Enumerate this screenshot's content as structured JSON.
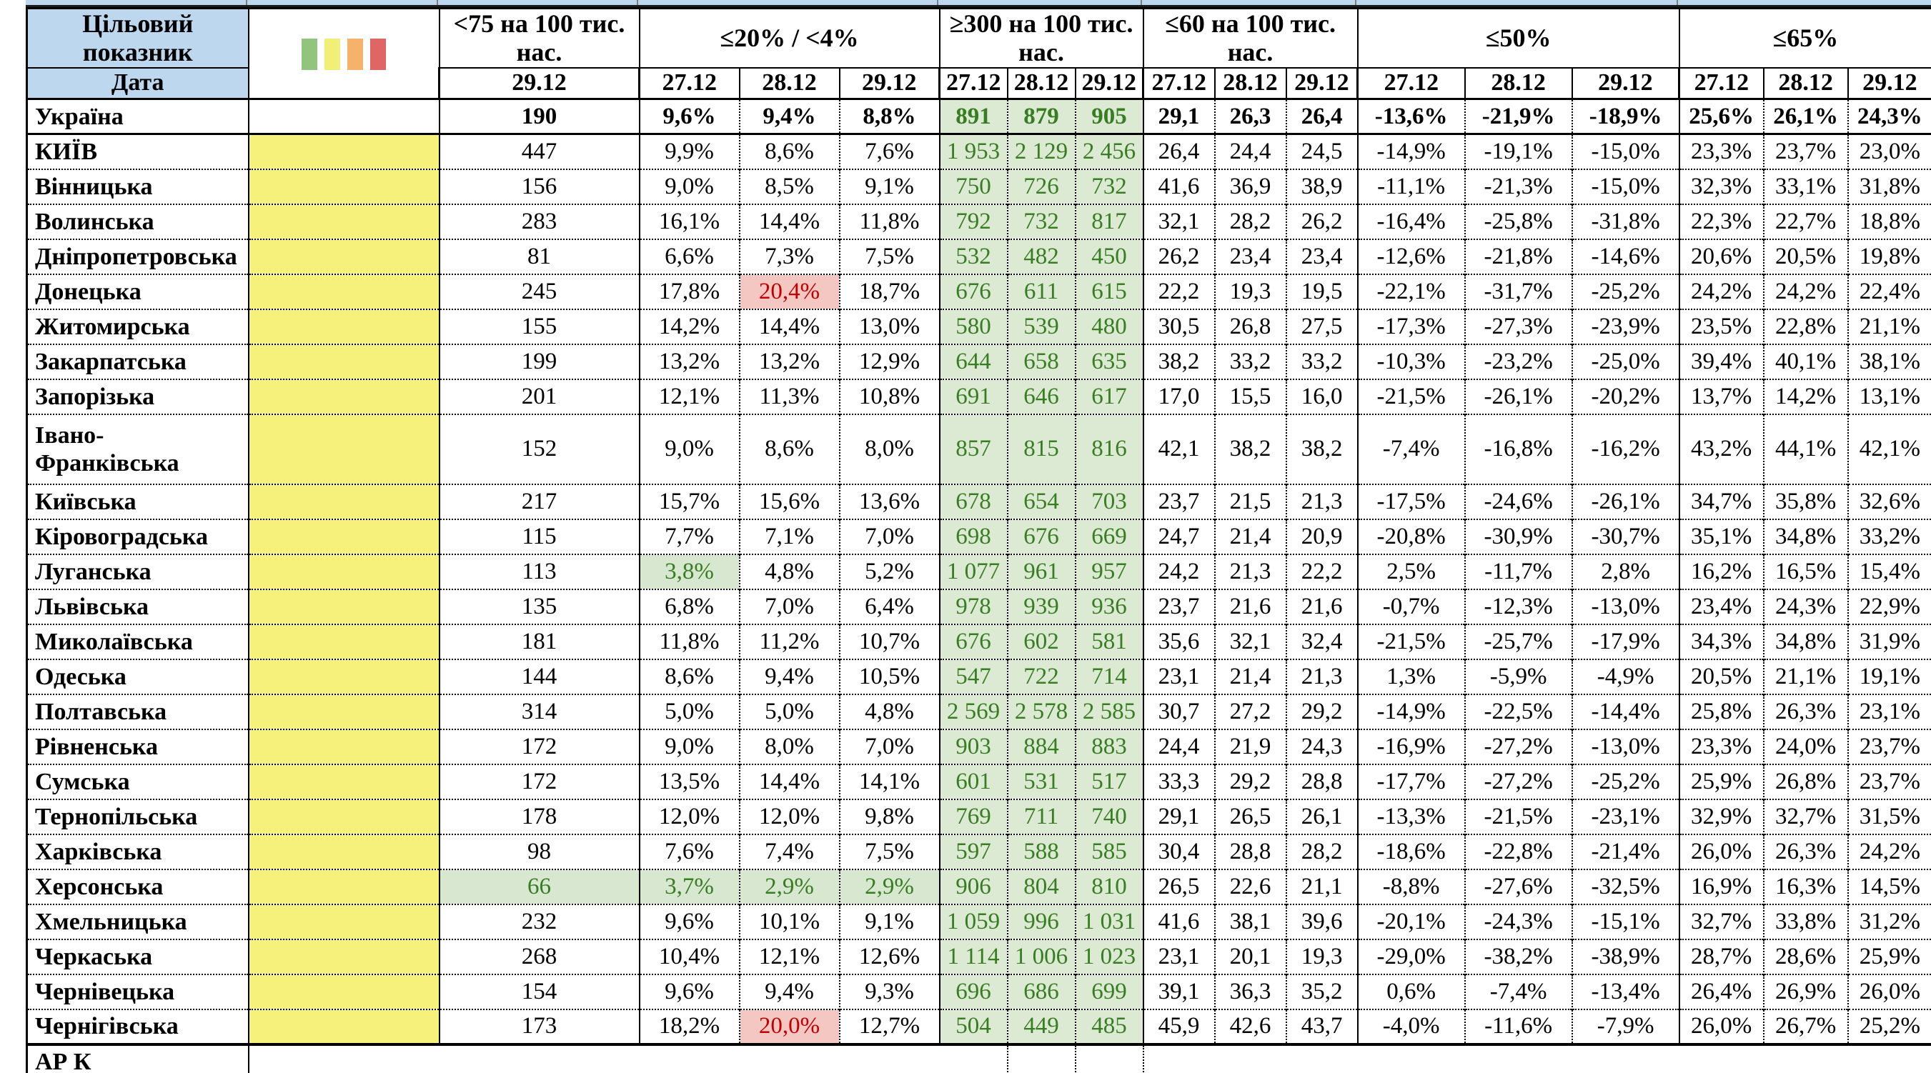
{
  "header": {
    "target_label": "Цільовий показник",
    "date_label": "Дата",
    "legend_colors": [
      "#93c47d",
      "#f2ef79",
      "#f6b26b",
      "#e06666"
    ],
    "legend_names": [
      "green-level",
      "yellow-level",
      "orange-level",
      "red-level"
    ],
    "sections": [
      {
        "title": "<75 на 100 тис. нас.",
        "dates": [
          "29.12"
        ]
      },
      {
        "title": "≤20% / <4%",
        "dates": [
          "27.12",
          "28.12",
          "29.12"
        ]
      },
      {
        "title": "≥300 на 100 тис. нас.",
        "dates": [
          "27.12",
          "28.12",
          "29.12"
        ]
      },
      {
        "title": "≤60 на 100 тис. нас.",
        "dates": [
          "27.12",
          "28.12",
          "29.12"
        ]
      },
      {
        "title": "≤50%",
        "dates": [
          "27.12",
          "28.12",
          "29.12"
        ]
      },
      {
        "title": "≤65%",
        "dates": [
          "27.12",
          "28.12",
          "29.12"
        ]
      }
    ],
    "colors": {
      "header_blue": "#bdd7ee",
      "indicator_yellow": "#f5f17b",
      "good_bg": "#dcead3",
      "good_text": "#377d22",
      "bad_bg": "#f5c7c3",
      "bad_text": "#c00000"
    }
  },
  "rows": [
    {
      "name": "Україна",
      "bold": true,
      "yellow": false,
      "values": [
        "190",
        "9,6%",
        "9,4%",
        "8,8%",
        "891",
        "879",
        "905",
        "29,1",
        "26,3",
        "26,4",
        "-13,6%",
        "-21,9%",
        "-18,9%",
        "25,6%",
        "26,1%",
        "24,3%"
      ],
      "hl": {}
    },
    {
      "name": "КИЇВ",
      "yellow": true,
      "values": [
        "447",
        "9,9%",
        "8,6%",
        "7,6%",
        "1 953",
        "2 129",
        "2 456",
        "26,4",
        "24,4",
        "24,5",
        "-14,9%",
        "-19,1%",
        "-15,0%",
        "23,3%",
        "23,7%",
        "23,0%"
      ],
      "hl": {}
    },
    {
      "name": "Вінницька",
      "yellow": true,
      "values": [
        "156",
        "9,0%",
        "8,5%",
        "9,1%",
        "750",
        "726",
        "732",
        "41,6",
        "36,9",
        "38,9",
        "-11,1%",
        "-21,3%",
        "-15,0%",
        "32,3%",
        "33,1%",
        "31,8%"
      ],
      "hl": {}
    },
    {
      "name": "Волинська",
      "yellow": true,
      "values": [
        "283",
        "16,1%",
        "14,4%",
        "11,8%",
        "792",
        "732",
        "817",
        "32,1",
        "28,2",
        "26,2",
        "-16,4%",
        "-25,8%",
        "-31,8%",
        "22,3%",
        "22,7%",
        "18,8%"
      ],
      "hl": {}
    },
    {
      "name": "Дніпропетровська",
      "yellow": true,
      "values": [
        "81",
        "6,6%",
        "7,3%",
        "7,5%",
        "532",
        "482",
        "450",
        "26,2",
        "23,4",
        "23,4",
        "-12,6%",
        "-21,8%",
        "-14,6%",
        "20,6%",
        "20,5%",
        "19,8%"
      ],
      "hl": {}
    },
    {
      "name": "Донецька",
      "yellow": true,
      "values": [
        "245",
        "17,8%",
        "20,4%",
        "18,7%",
        "676",
        "611",
        "615",
        "22,2",
        "19,3",
        "19,5",
        "-22,1%",
        "-31,7%",
        "-25,2%",
        "24,2%",
        "24,2%",
        "22,4%"
      ],
      "hl": {
        "2": "bad"
      }
    },
    {
      "name": "Житомирська",
      "yellow": true,
      "values": [
        "155",
        "14,2%",
        "14,4%",
        "13,0%",
        "580",
        "539",
        "480",
        "30,5",
        "26,8",
        "27,5",
        "-17,3%",
        "-27,3%",
        "-23,9%",
        "23,5%",
        "22,8%",
        "21,1%"
      ],
      "hl": {}
    },
    {
      "name": "Закарпатська",
      "yellow": true,
      "values": [
        "199",
        "13,2%",
        "13,2%",
        "12,9%",
        "644",
        "658",
        "635",
        "38,2",
        "33,2",
        "33,2",
        "-10,3%",
        "-23,2%",
        "-25,0%",
        "39,4%",
        "40,1%",
        "38,1%"
      ],
      "hl": {}
    },
    {
      "name": "Запорізька",
      "yellow": true,
      "values": [
        "201",
        "12,1%",
        "11,3%",
        "10,8%",
        "691",
        "646",
        "617",
        "17,0",
        "15,5",
        "16,0",
        "-21,5%",
        "-26,1%",
        "-20,2%",
        "13,7%",
        "14,2%",
        "13,1%"
      ],
      "hl": {}
    },
    {
      "name": "Івано-Франківська",
      "yellow": true,
      "tall": true,
      "values": [
        "152",
        "9,0%",
        "8,6%",
        "8,0%",
        "857",
        "815",
        "816",
        "42,1",
        "38,2",
        "38,2",
        "-7,4%",
        "-16,8%",
        "-16,2%",
        "43,2%",
        "44,1%",
        "42,1%"
      ],
      "hl": {}
    },
    {
      "name": "Київська",
      "yellow": true,
      "values": [
        "217",
        "15,7%",
        "15,6%",
        "13,6%",
        "678",
        "654",
        "703",
        "23,7",
        "21,5",
        "21,3",
        "-17,5%",
        "-24,6%",
        "-26,1%",
        "34,7%",
        "35,8%",
        "32,6%"
      ],
      "hl": {}
    },
    {
      "name": "Кіровоградська",
      "yellow": true,
      "values": [
        "115",
        "7,7%",
        "7,1%",
        "7,0%",
        "698",
        "676",
        "669",
        "24,7",
        "21,4",
        "20,9",
        "-20,8%",
        "-30,9%",
        "-30,7%",
        "35,1%",
        "34,8%",
        "33,2%"
      ],
      "hl": {}
    },
    {
      "name": "Луганська",
      "yellow": true,
      "values": [
        "113",
        "3,8%",
        "4,8%",
        "5,2%",
        "1 077",
        "961",
        "957",
        "24,2",
        "21,3",
        "22,2",
        "2,5%",
        "-11,7%",
        "2,8%",
        "16,2%",
        "16,5%",
        "15,4%"
      ],
      "hl": {
        "1": "good"
      }
    },
    {
      "name": "Львівська",
      "yellow": true,
      "values": [
        "135",
        "6,8%",
        "7,0%",
        "6,4%",
        "978",
        "939",
        "936",
        "23,7",
        "21,6",
        "21,6",
        "-0,7%",
        "-12,3%",
        "-13,0%",
        "23,4%",
        "24,3%",
        "22,9%"
      ],
      "hl": {}
    },
    {
      "name": "Миколаївська",
      "yellow": true,
      "values": [
        "181",
        "11,8%",
        "11,2%",
        "10,7%",
        "676",
        "602",
        "581",
        "35,6",
        "32,1",
        "32,4",
        "-21,5%",
        "-25,7%",
        "-17,9%",
        "34,3%",
        "34,8%",
        "31,9%"
      ],
      "hl": {}
    },
    {
      "name": "Одеська",
      "yellow": true,
      "values": [
        "144",
        "8,6%",
        "9,4%",
        "10,5%",
        "547",
        "722",
        "714",
        "23,1",
        "21,4",
        "21,3",
        "1,3%",
        "-5,9%",
        "-4,9%",
        "20,5%",
        "21,1%",
        "19,1%"
      ],
      "hl": {}
    },
    {
      "name": "Полтавська",
      "yellow": true,
      "values": [
        "314",
        "5,0%",
        "5,0%",
        "4,8%",
        "2 569",
        "2 578",
        "2 585",
        "30,7",
        "27,2",
        "29,2",
        "-14,9%",
        "-22,5%",
        "-14,4%",
        "25,8%",
        "26,3%",
        "23,1%"
      ],
      "hl": {}
    },
    {
      "name": "Рівненська",
      "yellow": true,
      "values": [
        "172",
        "9,0%",
        "8,0%",
        "7,0%",
        "903",
        "884",
        "883",
        "24,4",
        "21,9",
        "24,3",
        "-16,9%",
        "-27,2%",
        "-13,0%",
        "23,3%",
        "24,0%",
        "23,7%"
      ],
      "hl": {}
    },
    {
      "name": "Сумська",
      "yellow": true,
      "values": [
        "172",
        "13,5%",
        "14,4%",
        "14,1%",
        "601",
        "531",
        "517",
        "33,3",
        "29,2",
        "28,8",
        "-17,7%",
        "-27,2%",
        "-25,2%",
        "25,9%",
        "26,8%",
        "23,7%"
      ],
      "hl": {}
    },
    {
      "name": "Тернопільська",
      "yellow": true,
      "values": [
        "178",
        "12,0%",
        "12,0%",
        "9,8%",
        "769",
        "711",
        "740",
        "29,1",
        "26,5",
        "26,1",
        "-13,3%",
        "-21,5%",
        "-23,1%",
        "32,9%",
        "32,7%",
        "31,5%"
      ],
      "hl": {}
    },
    {
      "name": "Харківська",
      "yellow": true,
      "values": [
        "98",
        "7,6%",
        "7,4%",
        "7,5%",
        "597",
        "588",
        "585",
        "30,4",
        "28,8",
        "28,2",
        "-18,6%",
        "-22,8%",
        "-21,4%",
        "26,0%",
        "26,3%",
        "24,2%"
      ],
      "hl": {}
    },
    {
      "name": "Херсонська",
      "yellow": true,
      "values": [
        "66",
        "3,7%",
        "2,9%",
        "2,9%",
        "906",
        "804",
        "810",
        "26,5",
        "22,6",
        "21,1",
        "-8,8%",
        "-27,6%",
        "-32,5%",
        "16,9%",
        "16,3%",
        "14,5%"
      ],
      "hl": {
        "0": "good",
        "1": "good",
        "2": "good",
        "3": "good"
      }
    },
    {
      "name": "Хмельницька",
      "yellow": true,
      "values": [
        "232",
        "9,6%",
        "10,1%",
        "9,1%",
        "1 059",
        "996",
        "1 031",
        "41,6",
        "38,1",
        "39,6",
        "-20,1%",
        "-24,3%",
        "-15,1%",
        "32,7%",
        "33,8%",
        "31,2%"
      ],
      "hl": {}
    },
    {
      "name": "Черкаська",
      "yellow": true,
      "values": [
        "268",
        "10,4%",
        "12,1%",
        "12,6%",
        "1 114",
        "1 006",
        "1 023",
        "23,1",
        "20,1",
        "19,3",
        "-29,0%",
        "-38,2%",
        "-38,9%",
        "28,7%",
        "28,6%",
        "25,9%"
      ],
      "hl": {}
    },
    {
      "name": "Чернівецька",
      "yellow": true,
      "values": [
        "154",
        "9,6%",
        "9,4%",
        "9,3%",
        "696",
        "686",
        "699",
        "39,1",
        "36,3",
        "35,2",
        "0,6%",
        "-7,4%",
        "-13,4%",
        "26,4%",
        "26,9%",
        "26,0%"
      ],
      "hl": {}
    },
    {
      "name": "Чернігівська",
      "yellow": true,
      "values": [
        "173",
        "18,2%",
        "20,0%",
        "12,7%",
        "504",
        "449",
        "485",
        "45,9",
        "42,6",
        "43,7",
        "-4,0%",
        "-11,6%",
        "-7,9%",
        "26,0%",
        "26,7%",
        "25,2%"
      ],
      "hl": {
        "2": "bad"
      }
    },
    {
      "name": "АР К",
      "yellow": false,
      "partial": true,
      "values": [
        "",
        "",
        "",
        "",
        "",
        "",
        "",
        "",
        "",
        "",
        "",
        "",
        "",
        "",
        "",
        ""
      ],
      "hl": {}
    }
  ]
}
